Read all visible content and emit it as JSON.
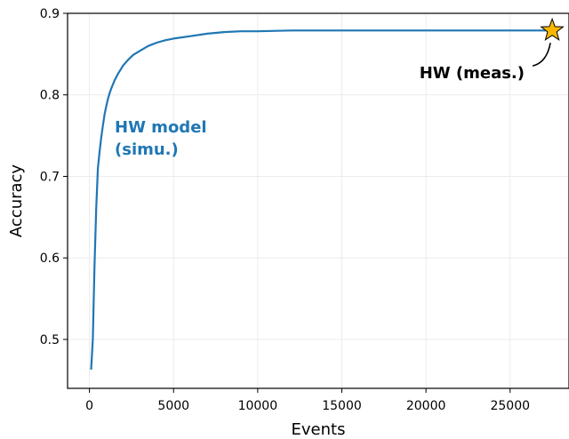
{
  "chart_data": {
    "type": "line",
    "xlabel": "Events",
    "ylabel": "Accuracy",
    "xlim": [
      -1300,
      28500
    ],
    "ylim": [
      0.44,
      0.9
    ],
    "xticks": [
      0,
      5000,
      10000,
      15000,
      20000,
      25000
    ],
    "xtick_labels": [
      "0",
      "5000",
      "10000",
      "15000",
      "20000",
      "25000"
    ],
    "yticks": [
      0.5,
      0.6,
      0.7,
      0.8,
      0.9
    ],
    "ytick_labels": [
      "0.5",
      "0.6",
      "0.7",
      "0.8",
      "0.9"
    ],
    "grid": true,
    "series": [
      {
        "name": "HW model (simu.)",
        "color": "#1f77b4",
        "x": [
          100,
          200,
          300,
          400,
          500,
          600,
          700,
          800,
          900,
          1000,
          1100,
          1200,
          1300,
          1400,
          1500,
          1700,
          2000,
          2300,
          2600,
          3000,
          3500,
          4000,
          4500,
          5000,
          6000,
          7000,
          8000,
          9000,
          10000,
          12000,
          15000,
          20000,
          25000,
          27500
        ],
        "y": [
          0.463,
          0.5,
          0.59,
          0.66,
          0.71,
          0.73,
          0.748,
          0.762,
          0.776,
          0.786,
          0.795,
          0.802,
          0.808,
          0.813,
          0.818,
          0.826,
          0.836,
          0.843,
          0.849,
          0.854,
          0.86,
          0.864,
          0.867,
          0.869,
          0.872,
          0.875,
          0.877,
          0.878,
          0.878,
          0.879,
          0.879,
          0.879,
          0.879,
          0.879
        ]
      }
    ],
    "points": [
      {
        "name": "HW (meas.)",
        "x": 27500,
        "y": 0.879,
        "marker": "star",
        "color": "#f9b700"
      }
    ],
    "annotations": [
      {
        "line1": "HW model",
        "line2": "(simu.)",
        "color": "#1f77b4"
      },
      {
        "text": "HW (meas.)",
        "color": "#000000"
      }
    ]
  }
}
